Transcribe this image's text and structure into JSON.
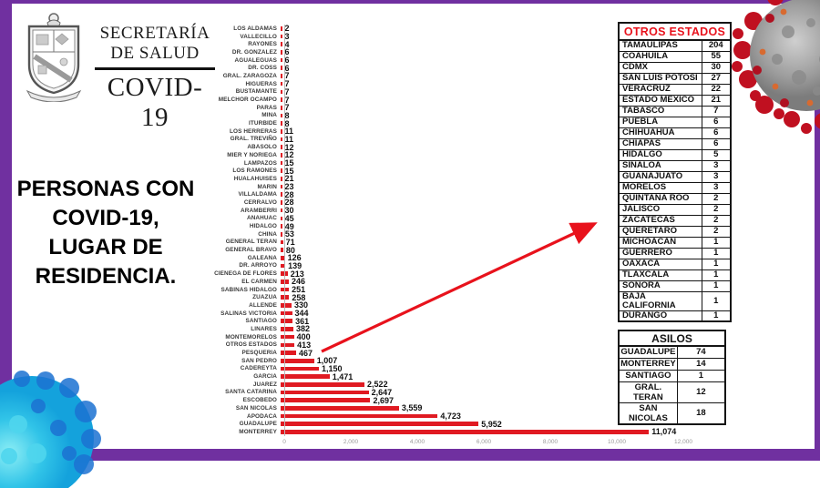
{
  "colors": {
    "purple": "#7030a0",
    "bar_red": "#e01a22",
    "table_title_red": "#e8121c"
  },
  "header": {
    "logo": "escudo-nuevo-leon",
    "agency_line1": "SECRETARÍA",
    "agency_line2": "DE SALUD",
    "program": "COVID-19"
  },
  "title": {
    "lines": [
      "PERSONAS CON",
      "COVID-19,",
      "LUGAR DE",
      "RESIDENCIA."
    ]
  },
  "chart_data": {
    "type": "bar",
    "orientation": "horizontal",
    "title": "PERSONAS CON COVID-19, LUGAR DE RESIDENCIA.",
    "xlim": [
      0,
      12000
    ],
    "x_ticks": [
      "0",
      "2,000",
      "4,000",
      "6,000",
      "8,000",
      "10,000",
      "12,000"
    ],
    "x_tick_values": [
      0,
      2000,
      4000,
      6000,
      8000,
      10000,
      12000
    ],
    "bar_color": "#e01a22",
    "grid": false,
    "legend": false,
    "categories": [
      "LOS ALDAMAS",
      "VALLECILLO",
      "RAYONES",
      "DR. GONZALEZ",
      "AGUALEGUAS",
      "DR. COSS",
      "GRAL. ZARAGOZA",
      "HIGUERAS",
      "BUSTAMANTE",
      "MELCHOR OCAMPO",
      "PARAS",
      "MINA",
      "ITURBIDE",
      "LOS HERRERAS",
      "GRAL. TREVIÑO",
      "ABASOLO",
      "MIER Y NORIEGA",
      "LAMPAZOS",
      "LOS RAMONES",
      "HUALAHUISES",
      "MARIN",
      "VILLALDAMA",
      "CERRALVO",
      "ARAMBERRI",
      "ANAHUAC",
      "HIDALGO",
      "CHINA",
      "GENERAL TERAN",
      "GENERAL BRAVO",
      "GALEANA",
      "DR. ARROYO",
      "CIENEGA DE FLORES",
      "EL CARMEN",
      "SABINAS HIDALGO",
      "ZUAZUA",
      "ALLENDE",
      "SALINAS VICTORIA",
      "SANTIAGO",
      "LINARES",
      "MONTEMORELOS",
      "OTROS ESTADOS",
      "PESQUERIA",
      "SAN PEDRO",
      "CADEREYTA",
      "GARCIA",
      "JUAREZ",
      "SANTA CATARINA",
      "ESCOBEDO",
      "SAN NICOLAS",
      "APODACA",
      "GUADALUPE",
      "MONTERREY"
    ],
    "values": [
      2,
      3,
      4,
      6,
      6,
      6,
      7,
      7,
      7,
      7,
      7,
      8,
      8,
      11,
      11,
      12,
      12,
      15,
      15,
      21,
      23,
      28,
      28,
      30,
      45,
      49,
      53,
      71,
      80,
      126,
      139,
      213,
      246,
      251,
      258,
      330,
      344,
      361,
      382,
      400,
      413,
      467,
      1007,
      1150,
      1471,
      2522,
      2647,
      2697,
      3559,
      4723,
      5952,
      11074
    ],
    "value_labels": [
      "2",
      "3",
      "4",
      "6",
      "6",
      "6",
      "7",
      "7",
      "7",
      "7",
      "7",
      "8",
      "8",
      "11",
      "11",
      "12",
      "12",
      "15",
      "15",
      "21",
      "23",
      "28",
      "28",
      "30",
      "45",
      "49",
      "53",
      "71",
      "80",
      "126",
      "139",
      "213",
      "246",
      "251",
      "258",
      "330",
      "344",
      "361",
      "382",
      "400",
      "413",
      "467",
      "1,007",
      "1,150",
      "1,471",
      "2,522",
      "2,647",
      "2,697",
      "3,559",
      "4,723",
      "5,952",
      "11,074"
    ]
  },
  "tables": {
    "otros_estados": {
      "title": "OTROS ESTADOS",
      "rows": [
        [
          "TAMAULIPAS",
          "204"
        ],
        [
          "COAHUILA",
          "55"
        ],
        [
          "CDMX",
          "30"
        ],
        [
          "SAN LUIS POTOSI",
          "27"
        ],
        [
          "VERACRUZ",
          "22"
        ],
        [
          "ESTADO MEXICO",
          "21"
        ],
        [
          "TABASCO",
          "7"
        ],
        [
          "PUEBLA",
          "6"
        ],
        [
          "CHIHUAHUA",
          "6"
        ],
        [
          "CHIAPAS",
          "6"
        ],
        [
          "HIDALGO",
          "5"
        ],
        [
          "SINALOA",
          "3"
        ],
        [
          "GUANAJUATO",
          "3"
        ],
        [
          "MORELOS",
          "3"
        ],
        [
          "QUINTANA ROO",
          "2"
        ],
        [
          "JALISCO",
          "2"
        ],
        [
          "ZACATECAS",
          "2"
        ],
        [
          "QUERETARO",
          "2"
        ],
        [
          "MICHOACAN",
          "1"
        ],
        [
          "GUERRERO",
          "1"
        ],
        [
          "OAXACA",
          "1"
        ],
        [
          "TLAXCALA",
          "1"
        ],
        [
          "SONORA",
          "1"
        ],
        [
          "BAJA CALIFORNIA",
          "1"
        ],
        [
          "DURANGO",
          "1"
        ]
      ]
    },
    "asilos": {
      "title": "ASILOS",
      "rows": [
        [
          "GUADALUPE",
          "74"
        ],
        [
          "MONTERREY",
          "14"
        ],
        [
          "SANTIAGO",
          "1"
        ],
        [
          "GRAL. TERAN",
          "12"
        ],
        [
          "SAN NICOLAS",
          "18"
        ]
      ]
    }
  },
  "decorations": {
    "arrow_color": "#e8121c",
    "arrow_icon": "arrow-otros-estados-to-table",
    "virus_top_right": "coronavirus-icon",
    "virus_bottom_left": "virus-teal-icon"
  }
}
